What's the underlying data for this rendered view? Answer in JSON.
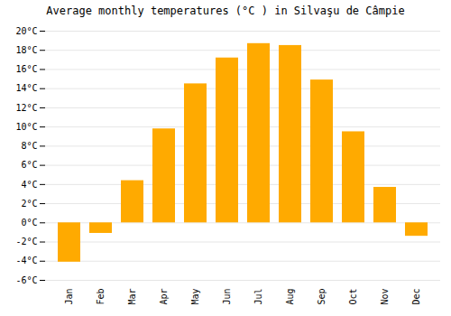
{
  "chart_data": {
    "type": "bar",
    "title": "Average monthly temperatures (°C ) in Silvaşu de Câmpie",
    "categories": [
      "Jan",
      "Feb",
      "Mar",
      "Apr",
      "May",
      "Jun",
      "Jul",
      "Aug",
      "Sep",
      "Oct",
      "Nov",
      "Dec"
    ],
    "values": [
      -4.1,
      -1.1,
      4.4,
      9.8,
      14.5,
      17.2,
      18.7,
      18.5,
      14.9,
      9.5,
      3.7,
      -1.4
    ],
    "color": "#FFAA00",
    "ylim": [
      -6,
      20
    ],
    "yticks": [
      {
        "value": -6,
        "label": "-6°C"
      },
      {
        "value": -4,
        "label": "-4°C"
      },
      {
        "value": -2,
        "label": "-2°C"
      },
      {
        "value": 0,
        "label": "0°C"
      },
      {
        "value": 2,
        "label": "2°C"
      },
      {
        "value": 4,
        "label": "4°C"
      },
      {
        "value": 6,
        "label": "6°C"
      },
      {
        "value": 8,
        "label": "8°C"
      },
      {
        "value": 10,
        "label": "10°C"
      },
      {
        "value": 12,
        "label": "12°C"
      },
      {
        "value": 14,
        "label": "14°C"
      },
      {
        "value": 16,
        "label": "16°C"
      },
      {
        "value": 18,
        "label": "18°C"
      },
      {
        "value": 20,
        "label": "20°C"
      }
    ],
    "grid": true
  }
}
